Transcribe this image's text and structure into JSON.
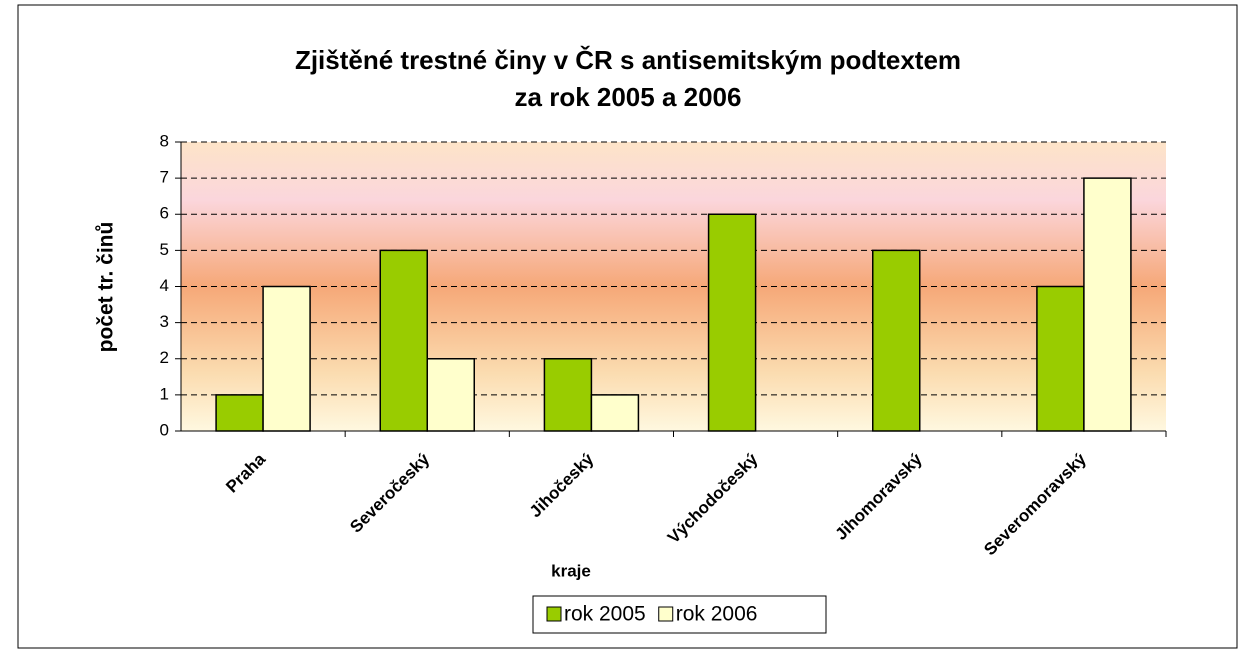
{
  "chart_data": {
    "type": "bar",
    "title": [
      "Zjištěné trestné činy v ČR s antisemitským podtextem",
      "za rok 2005 a 2006"
    ],
    "categories": [
      "Praha",
      "Severočeský",
      "Jihočeský",
      "Východočeský",
      "Jihomoravský",
      "Severomoravský"
    ],
    "series": [
      {
        "name": "rok 2005",
        "color": "#99cc00",
        "values": [
          1,
          5,
          2,
          6,
          5,
          4
        ]
      },
      {
        "name": "rok 2006",
        "color": "#ffffcc",
        "values": [
          4,
          2,
          1,
          0,
          0,
          7
        ]
      }
    ],
    "x_label": "kraje",
    "y_label": "počet tr. činů",
    "ylim": [
      0,
      8
    ],
    "yticks": [
      0,
      1,
      2,
      3,
      4,
      5,
      6,
      7,
      8
    ],
    "grid": true,
    "legend": "bottom"
  }
}
